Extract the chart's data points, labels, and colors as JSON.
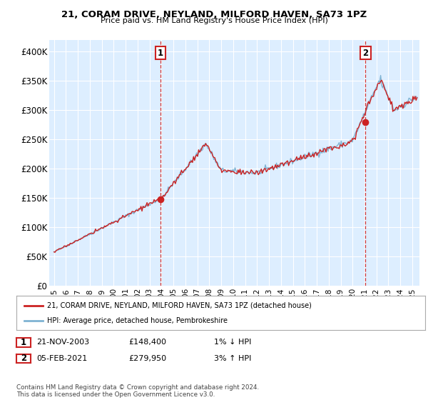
{
  "title_line1": "21, CORAM DRIVE, NEYLAND, MILFORD HAVEN, SA73 1PZ",
  "title_line2": "Price paid vs. HM Land Registry's House Price Index (HPI)",
  "ylabel_ticks": [
    "£0",
    "£50K",
    "£100K",
    "£150K",
    "£200K",
    "£250K",
    "£300K",
    "£350K",
    "£400K"
  ],
  "ytick_values": [
    0,
    50000,
    100000,
    150000,
    200000,
    250000,
    300000,
    350000,
    400000
  ],
  "ylim": [
    0,
    420000
  ],
  "xlim_start": 1994.6,
  "xlim_end": 2025.6,
  "xtick_years": [
    1995,
    1996,
    1997,
    1998,
    1999,
    2000,
    2001,
    2002,
    2003,
    2004,
    2005,
    2006,
    2007,
    2008,
    2009,
    2010,
    2011,
    2012,
    2013,
    2014,
    2015,
    2016,
    2017,
    2018,
    2019,
    2020,
    2021,
    2022,
    2023,
    2024,
    2025
  ],
  "hpi_color": "#7fb3d3",
  "price_color": "#cc2222",
  "vline_color": "#cc2222",
  "chart_bg": "#ddeeff",
  "background_color": "#ffffff",
  "grid_color": "#ffffff",
  "sale1_date_num": 2003.896,
  "sale1_price": 148400,
  "sale1_label": "1",
  "sale2_date_num": 2021.09,
  "sale2_price": 279950,
  "sale2_label": "2",
  "legend_house_label": "21, CORAM DRIVE, NEYLAND, MILFORD HAVEN, SA73 1PZ (detached house)",
  "legend_hpi_label": "HPI: Average price, detached house, Pembrokeshire",
  "annotation1_date": "21-NOV-2003",
  "annotation1_price": "£148,400",
  "annotation1_change": "1% ↓ HPI",
  "annotation2_date": "05-FEB-2021",
  "annotation2_price": "£279,950",
  "annotation2_change": "3% ↑ HPI",
  "footer": "Contains HM Land Registry data © Crown copyright and database right 2024.\nThis data is licensed under the Open Government Licence v3.0."
}
